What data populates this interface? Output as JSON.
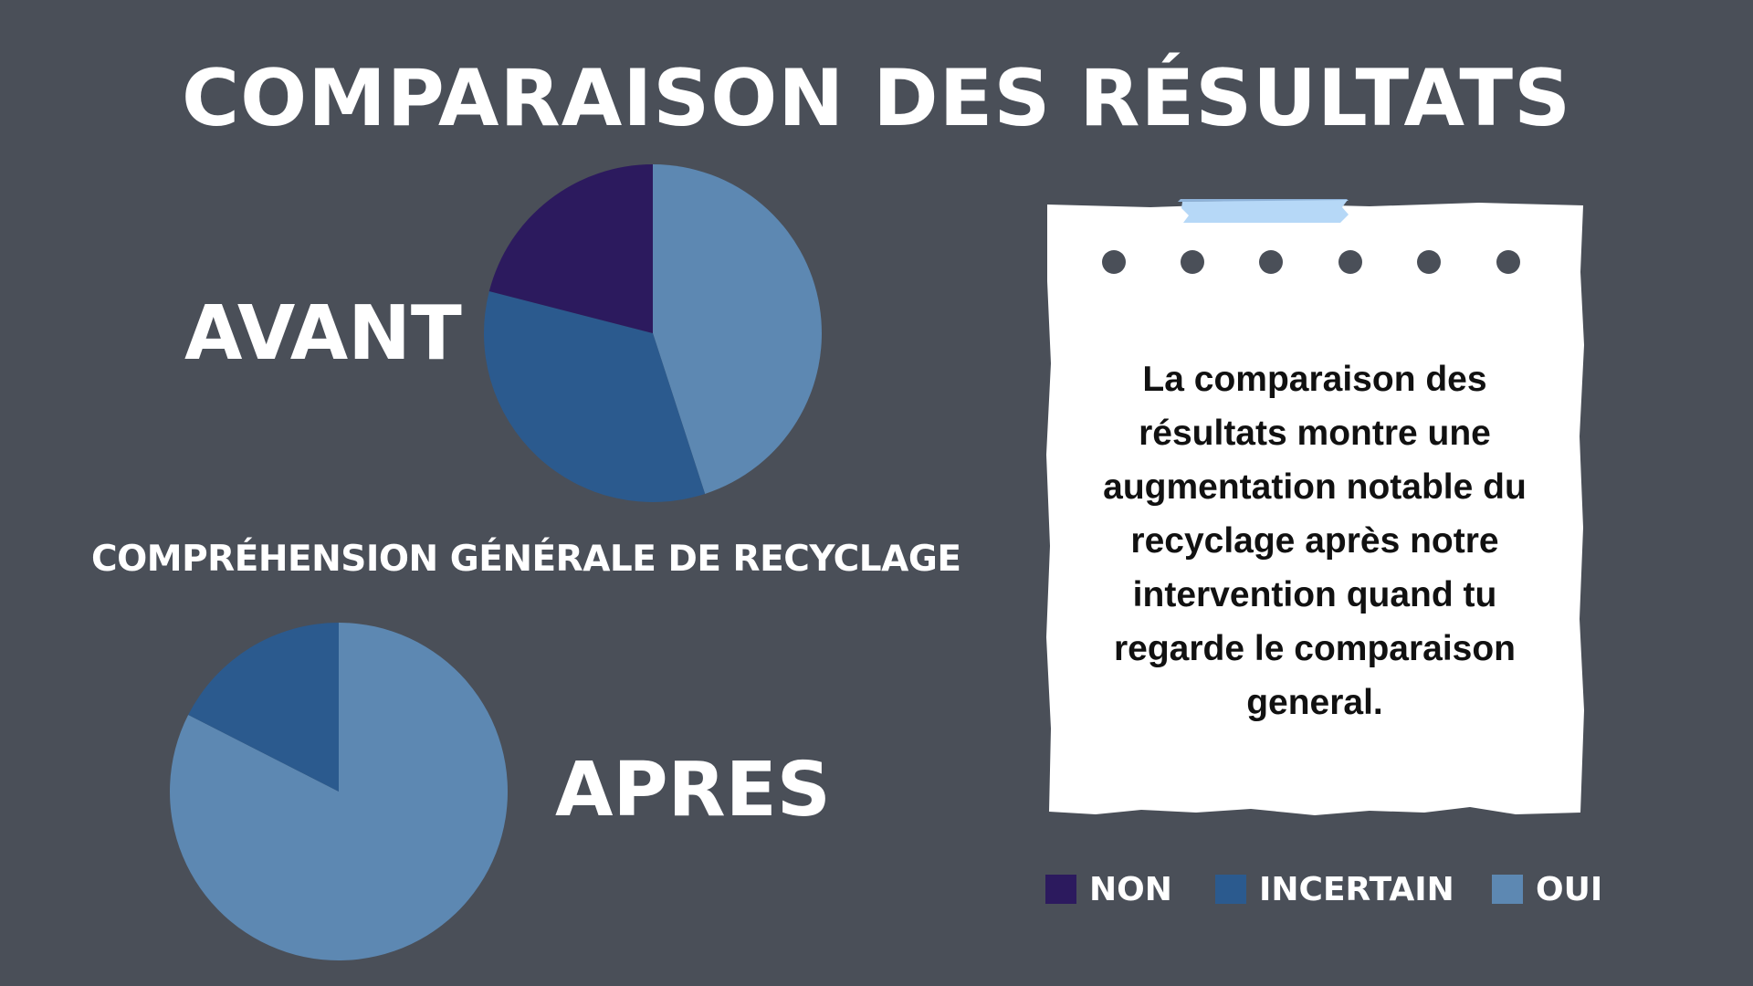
{
  "title": "COMPARAISON DES RÉSULTATS",
  "note_text": "La comparaison des résultats montre une augmentation notable du recyclage après notre intervention quand tu regarde le comparaison general.",
  "colors": {
    "background": "#4a4f58",
    "NON": "#2c1a5e",
    "INCERTAIN": "#2b5a8e",
    "OUI": "#5d88b2",
    "tape_top": "#8fb3d9",
    "tape_bottom": "#b6d8f7",
    "paper": "#ffffff",
    "holes": "#4a4f58"
  },
  "legend": [
    {
      "label": "NON",
      "color": "#2c1a5e"
    },
    {
      "label": "INCERTAIN",
      "color": "#2b5a8e"
    },
    {
      "label": "OUI",
      "color": "#5d88b2"
    }
  ],
  "chart_data": [
    {
      "type": "pie",
      "title": "AVANT",
      "categories": [
        "OUI",
        "INCERTAIN",
        "NON"
      ],
      "values": [
        45,
        34,
        21
      ],
      "colors": [
        "#5d88b2",
        "#2b5a8e",
        "#2c1a5e"
      ],
      "legend": "bottom-right"
    },
    {
      "type": "pie",
      "title": "APRES",
      "categories": [
        "OUI",
        "INCERTAIN",
        "NON"
      ],
      "values": [
        82.5,
        17.5,
        0
      ],
      "colors": [
        "#5d88b2",
        "#2b5a8e",
        "#2c1a5e"
      ],
      "legend": "bottom-right"
    }
  ],
  "subtitle": "COMPRÉHENSION GÉNÉRALE DE RECYCLAGE"
}
